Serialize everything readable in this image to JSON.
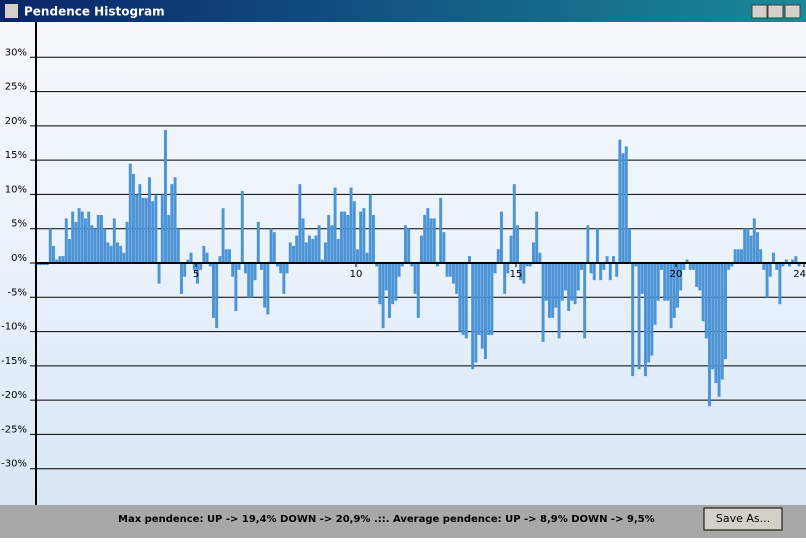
{
  "window": {
    "title": "Pendence Histogram",
    "status": "Max pendence: UP -> 19,4% DOWN -> 20,9% .::. Average pendence: UP -> 8,9% DOWN -> 9,5%",
    "button": "Save As..."
  },
  "chart_data": {
    "type": "histogram",
    "color": "#4d94d6",
    "grid": true,
    "bins": [
      0,
      0.1,
      0.2,
      0.3,
      0.4,
      0.5,
      0.6,
      0.7,
      0.8,
      0.9,
      1,
      1.1,
      1.2,
      1.3,
      1.4,
      1.5,
      1.6,
      1.7,
      1.8,
      1.9,
      2,
      2.1,
      2.2,
      2.3,
      2.4,
      2.5,
      2.6,
      2.7,
      2.8,
      2.9,
      3,
      3.1,
      3.2,
      3.3,
      3.4,
      3.5,
      3.6,
      3.7,
      3.8,
      3.9,
      4,
      4.1,
      4.2,
      4.3,
      4.4,
      4.5,
      4.6,
      4.7,
      4.8,
      4.9,
      5,
      5.1,
      5.2,
      5.3,
      5.4,
      5.5,
      5.6,
      5.7,
      5.8,
      5.9,
      6,
      6.1,
      6.2,
      6.3,
      6.4,
      6.5,
      6.6,
      6.7,
      6.8,
      6.9,
      7,
      7.1,
      7.2,
      7.3,
      7.4,
      7.5,
      7.6,
      7.7,
      7.8,
      7.9,
      8,
      8.1,
      8.2,
      8.3,
      8.4,
      8.5,
      8.6,
      8.7,
      8.8,
      8.9,
      9,
      9.1,
      9.2,
      9.3,
      9.4,
      9.5,
      9.6,
      9.7,
      9.8,
      9.9,
      10,
      10.1,
      10.2,
      10.3,
      10.4,
      10.5,
      10.6,
      10.7,
      10.8,
      10.9,
      11,
      11.1,
      11.2,
      11.3,
      11.4,
      11.5,
      11.6,
      11.7,
      11.8,
      11.9,
      12,
      12.1,
      12.2,
      12.3,
      12.4,
      12.5,
      12.6,
      12.7,
      12.8,
      12.9,
      13,
      13.1,
      13.2,
      13.3,
      13.4,
      13.5,
      13.6,
      13.7,
      13.8,
      13.9,
      14,
      14.1,
      14.2,
      14.3,
      14.4,
      14.5,
      14.6,
      14.7,
      14.8,
      14.9,
      15,
      15.1,
      15.2,
      15.3,
      15.4,
      15.5,
      15.6,
      15.7,
      15.8,
      15.9,
      16,
      16.1,
      16.2,
      16.3,
      16.4,
      16.5,
      16.6,
      16.7,
      16.8,
      16.9,
      17,
      17.1,
      17.2,
      17.3,
      17.4,
      17.5,
      17.6,
      17.7,
      17.8,
      17.9,
      18,
      18.1,
      18.2,
      18.3,
      18.4,
      18.5,
      18.6,
      18.7,
      18.8,
      18.9,
      19,
      19.1,
      19.2,
      19.3,
      19.4,
      19.5,
      19.6,
      19.7,
      19.8,
      19.9,
      20,
      20.1,
      20.2,
      20.3,
      20.4,
      20.5,
      20.6,
      20.7,
      20.8,
      20.9,
      21,
      21.1,
      21.2,
      21.3,
      21.4,
      21.5,
      21.6,
      21.7,
      21.8,
      21.9,
      22,
      22.1,
      22.2,
      22.3,
      22.4,
      22.5,
      22.6,
      22.7,
      22.8,
      22.9,
      23,
      23.1,
      23.2,
      23.3,
      23.4,
      23.5,
      23.6,
      23.7,
      23.8,
      23.9,
      24
    ],
    "values": [
      -0.3,
      -0.3,
      -0.3,
      -0.3,
      5,
      2.5,
      0.5,
      1,
      1,
      6.5,
      3.5,
      7.5,
      6,
      8,
      7.5,
      6.5,
      7.5,
      5.5,
      5,
      7,
      7,
      5,
      3,
      2.5,
      6.5,
      3,
      2.5,
      1.5,
      6,
      14.5,
      13,
      10,
      11.5,
      9.5,
      9.5,
      12.5,
      9,
      10,
      -3,
      10,
      19.4,
      7,
      11.5,
      12.5,
      5,
      -4.5,
      -2,
      0.5,
      1.5,
      -1,
      -3,
      -1,
      2.5,
      1.5,
      -0.5,
      -8,
      -9.5,
      1,
      8,
      2,
      2,
      -2,
      -7,
      -1,
      10.5,
      -1.5,
      -5,
      -5,
      -2.5,
      6,
      -1,
      -6.5,
      -7.5,
      5,
      4.5,
      -0.5,
      -1.5,
      -4.5,
      -1.5,
      3,
      2.5,
      4,
      11.5,
      6.5,
      3,
      4,
      3.5,
      4,
      5.5,
      0.5,
      3,
      7,
      5.5,
      11,
      3.5,
      7.5,
      7.5,
      7,
      11,
      9,
      2,
      7.5,
      8,
      1.5,
      10,
      7,
      -0.5,
      -6,
      -9.5,
      -4,
      -8,
      -6,
      -5.5,
      -2,
      -0.5,
      5.5,
      5,
      -0.5,
      -4.5,
      -8,
      4,
      7,
      8,
      6.5,
      6.5,
      -0.5,
      9.5,
      4.5,
      -2,
      -2,
      -3,
      -4.5,
      -10,
      -10.5,
      -11,
      1,
      -15.5,
      -14.5,
      -10.5,
      -12.5,
      -14,
      -10.5,
      -10.5,
      -1.5,
      2,
      7.5,
      -4.5,
      -1.5,
      4,
      11.5,
      5.5,
      -2.5,
      -3,
      -0.5,
      -0.5,
      3,
      7.5,
      1.5,
      -11.5,
      -5.5,
      -8,
      -8,
      -6.5,
      -11,
      -5.5,
      -4,
      -7,
      -5.5,
      -6,
      -4,
      -1,
      -11,
      5.5,
      -1.5,
      -2.5,
      5,
      -2.5,
      -1,
      1,
      -2.5,
      1,
      -2,
      18,
      16,
      17,
      5,
      -16.5,
      -0.5,
      -15.5,
      -4.5,
      -16.5,
      -14.5,
      -13.5,
      -9,
      -5.5,
      -1,
      -5.5,
      -5.5,
      -9.5,
      -8,
      -6.5,
      -4,
      -1,
      0.5,
      -1,
      -1,
      -3.5,
      -4,
      -8.5,
      -11,
      -20.9,
      -15.5,
      -17.5,
      -19.5,
      -17,
      -14,
      -1,
      -0.5,
      2,
      2,
      2,
      5,
      5,
      4,
      6.5,
      4.5,
      2,
      -1,
      -5,
      -2,
      1.5,
      -1,
      -6,
      -0.5,
      0.5,
      -0.5,
      0.5,
      1,
      -0.5,
      0
    ],
    "xlim": [
      0,
      24
    ],
    "xticks": [
      5,
      10,
      15,
      20,
      24
    ],
    "ylim": [
      -35,
      35
    ],
    "yticks": [
      {
        "value": -30,
        "label": "-30%"
      },
      {
        "value": -25,
        "label": "-25%"
      },
      {
        "value": -20,
        "label": "-20%"
      },
      {
        "value": -15,
        "label": "-15%"
      },
      {
        "value": -10,
        "label": "-10%"
      },
      {
        "value": -5,
        "label": "-5%"
      },
      {
        "value": 0,
        "label": "0%"
      },
      {
        "value": 5,
        "label": "5%"
      },
      {
        "value": 10,
        "label": "10%"
      },
      {
        "value": 15,
        "label": "15%"
      },
      {
        "value": 20,
        "label": "20%"
      },
      {
        "value": 25,
        "label": "25%"
      },
      {
        "value": 30,
        "label": "30%"
      }
    ]
  }
}
